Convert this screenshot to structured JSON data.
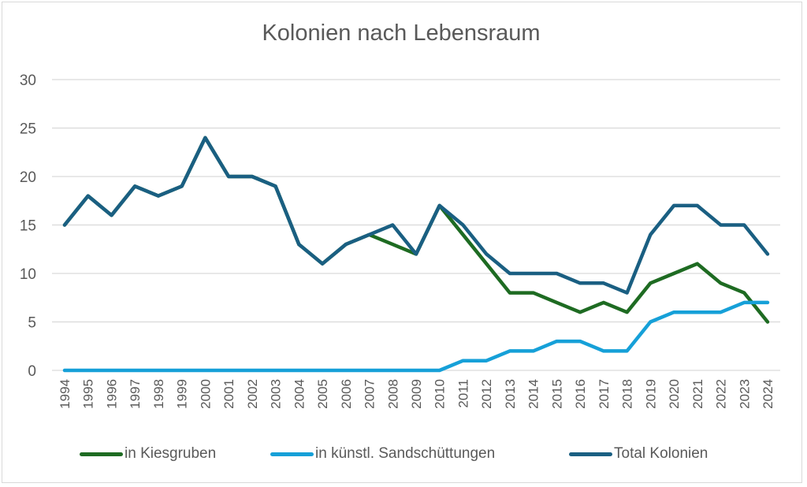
{
  "chart_data": {
    "type": "line",
    "title": "Kolonien nach Lebensraum",
    "xlabel": "",
    "ylabel": "",
    "ylim": [
      0,
      30
    ],
    "yticks": [
      0,
      5,
      10,
      15,
      20,
      25,
      30
    ],
    "grid": true,
    "legend_position": "bottom",
    "x": [
      "1994",
      "1995",
      "1996",
      "1997",
      "1998",
      "1999",
      "2000",
      "2001",
      "2002",
      "2003",
      "2004",
      "2005",
      "2006",
      "2007",
      "2008",
      "2009",
      "2010",
      "2011",
      "2012",
      "2013",
      "2014",
      "2015",
      "2016",
      "2017",
      "2018",
      "2019",
      "2020",
      "2021",
      "2022",
      "2023",
      "2024"
    ],
    "series": [
      {
        "name": "in Kiesgruben",
        "color": "#1e6b22",
        "values": [
          15,
          18,
          16,
          19,
          18,
          19,
          24,
          20,
          20,
          19,
          13,
          11,
          13,
          14,
          13,
          12,
          17,
          14,
          11,
          8,
          8,
          7,
          6,
          7,
          6,
          9,
          10,
          11,
          9,
          8,
          5
        ]
      },
      {
        "name": "in künstl. Sandschüttungen",
        "color": "#16a0d8",
        "values": [
          0,
          0,
          0,
          0,
          0,
          0,
          0,
          0,
          0,
          0,
          0,
          0,
          0,
          0,
          0,
          0,
          0,
          1,
          1,
          2,
          2,
          3,
          3,
          2,
          2,
          5,
          6,
          6,
          6,
          7,
          7
        ]
      },
      {
        "name": "Total Kolonien",
        "color": "#1a5f82",
        "values": [
          15,
          18,
          16,
          19,
          18,
          19,
          24,
          20,
          20,
          19,
          13,
          11,
          13,
          14,
          15,
          12,
          17,
          15,
          12,
          10,
          10,
          10,
          9,
          9,
          8,
          14,
          17,
          17,
          15,
          15,
          12
        ]
      }
    ]
  }
}
